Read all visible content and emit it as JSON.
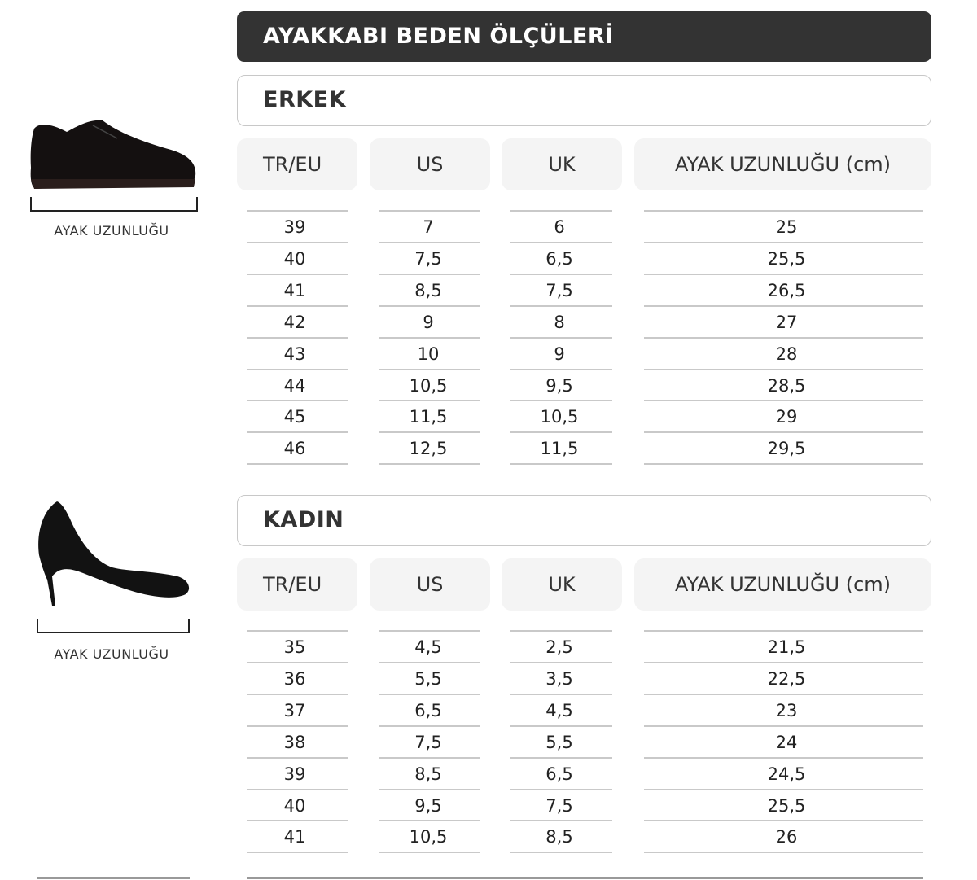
{
  "title": "AYAKKABI BEDEN ÖLÇÜLERİ",
  "columns": [
    "TR/EU",
    "US",
    "UK",
    "AYAK UZUNLUĞU (cm)"
  ],
  "foot_length_caption": "AYAK UZUNLUĞU",
  "sections": [
    {
      "name": "ERKEK",
      "icon": "mens-oxford-shoe-icon",
      "rows": [
        [
          "39",
          "7",
          "6",
          "25"
        ],
        [
          "40",
          "7,5",
          "6,5",
          "25,5"
        ],
        [
          "41",
          "8,5",
          "7,5",
          "26,5"
        ],
        [
          "42",
          "9",
          "8",
          "27"
        ],
        [
          "43",
          "10",
          "9",
          "28"
        ],
        [
          "44",
          "10,5",
          "9,5",
          "28,5"
        ],
        [
          "45",
          "11,5",
          "10,5",
          "29"
        ],
        [
          "46",
          "12,5",
          "11,5",
          "29,5"
        ]
      ]
    },
    {
      "name": "KADIN",
      "icon": "womens-high-heel-icon",
      "rows": [
        [
          "35",
          "4,5",
          "2,5",
          "21,5"
        ],
        [
          "36",
          "5,5",
          "3,5",
          "22,5"
        ],
        [
          "37",
          "6,5",
          "4,5",
          "23"
        ],
        [
          "38",
          "7,5",
          "5,5",
          "24"
        ],
        [
          "39",
          "8,5",
          "6,5",
          "24,5"
        ],
        [
          "40",
          "9,5",
          "7,5",
          "25,5"
        ],
        [
          "41",
          "10,5",
          "8,5",
          "26"
        ]
      ]
    }
  ],
  "colors": {
    "title_bar": "#333333",
    "header_cell": "#f4f4f4",
    "rule": "#c9c9c9"
  }
}
